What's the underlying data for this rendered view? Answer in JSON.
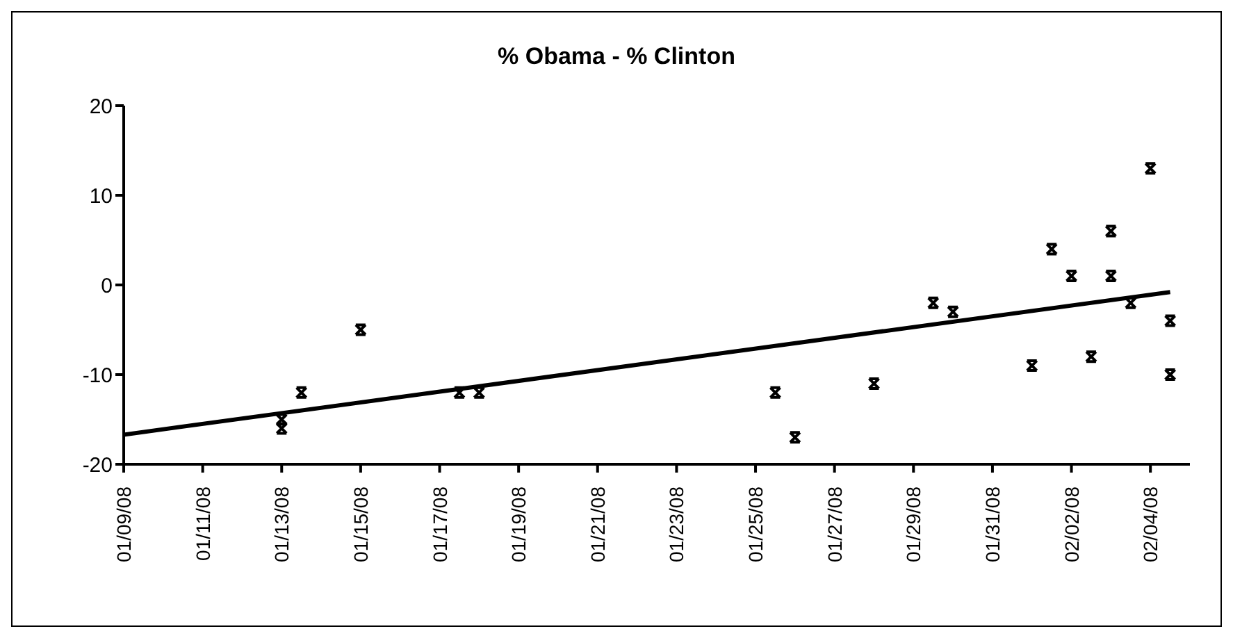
{
  "chart_data": {
    "type": "scatter",
    "title": "% Obama - % Clinton",
    "grid": false,
    "legend": false,
    "xlim": [
      "--01-09",
      "--02-05"
    ],
    "xticks": [
      {
        "value": "--01-09",
        "label": "01/09/08"
      },
      {
        "value": "--01-11",
        "label": "01/11/08"
      },
      {
        "value": "--01-13",
        "label": "01/13/08"
      },
      {
        "value": "--01-15",
        "label": "01/15/08"
      },
      {
        "value": "--01-17",
        "label": "01/17/08"
      },
      {
        "value": "--01-19",
        "label": "01/19/08"
      },
      {
        "value": "--01-21",
        "label": "01/21/08"
      },
      {
        "value": "--01-23",
        "label": "01/23/08"
      },
      {
        "value": "--01-25",
        "label": "01/25/08"
      },
      {
        "value": "--01-27",
        "label": "01/27/08"
      },
      {
        "value": "--01-29",
        "label": "01/29/08"
      },
      {
        "value": "--01-31",
        "label": "01/31/08"
      },
      {
        "value": "--02-02",
        "label": "02/02/08"
      },
      {
        "value": "--02-04",
        "label": "02/04/08"
      }
    ],
    "ylim": [
      -20,
      20
    ],
    "yticks": [
      -20,
      -10,
      0,
      10,
      20
    ],
    "series": [
      {
        "color": "#000000",
        "marker": "cross",
        "x": [
          "--01-13",
          "--01-13",
          "--01-13T12:00",
          "--01-15",
          "--01-17T12:00",
          "--01-18",
          "--01-25T12:00",
          "--01-26",
          "--01-28",
          "--01-29T12:00",
          "--01-30",
          "--02-01",
          "--02-01T12:00",
          "--02-02",
          "--02-02T12:00",
          "--02-03",
          "--02-03",
          "--02-03T12:00",
          "--02-04",
          "--02-04T12:00",
          "--02-04T12:00"
        ],
        "values": [
          -15,
          -16,
          -12,
          -5,
          -12,
          -12,
          -12,
          -17,
          -11,
          -2,
          -3,
          -9,
          4,
          1,
          -8,
          6,
          1,
          -2,
          13,
          -4,
          -10
        ]
      },
      {
        "type": "line",
        "color": "#000000",
        "x": [
          "--01-09",
          "--02-04T12:00"
        ],
        "values": [
          -16.7,
          -0.8
        ]
      }
    ]
  }
}
